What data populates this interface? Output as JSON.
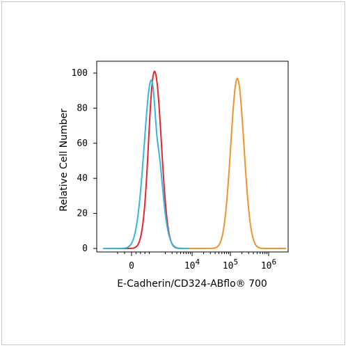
{
  "chart_data": {
    "type": "line",
    "xlabel": "E-Cadherin/CD324-ABflo® 700",
    "ylabel": "Relative Cell Number",
    "x_scale": "biexponential",
    "ylim": [
      0,
      100
    ],
    "y_ticks": [
      "0",
      "20",
      "40",
      "60",
      "80",
      "100"
    ],
    "x_ticks": [
      {
        "label": "0",
        "value": 0
      },
      {
        "label": "10",
        "exp": "4",
        "value": 10000
      },
      {
        "label": "10",
        "exp": "5",
        "value": 100000
      },
      {
        "label": "10",
        "exp": "6",
        "value": 1000000
      }
    ],
    "grid": false,
    "legend": "none",
    "series": [
      {
        "color": "#e8232a",
        "peak_x": "~1000 (negative region)",
        "peak_y": 98
      },
      {
        "color": "#31b7e3",
        "peak_x": "~800 (negative region)",
        "peak_y": 95
      },
      {
        "color": "#f29327",
        "peak_x": 100000,
        "peak_y": 97
      }
    ]
  }
}
